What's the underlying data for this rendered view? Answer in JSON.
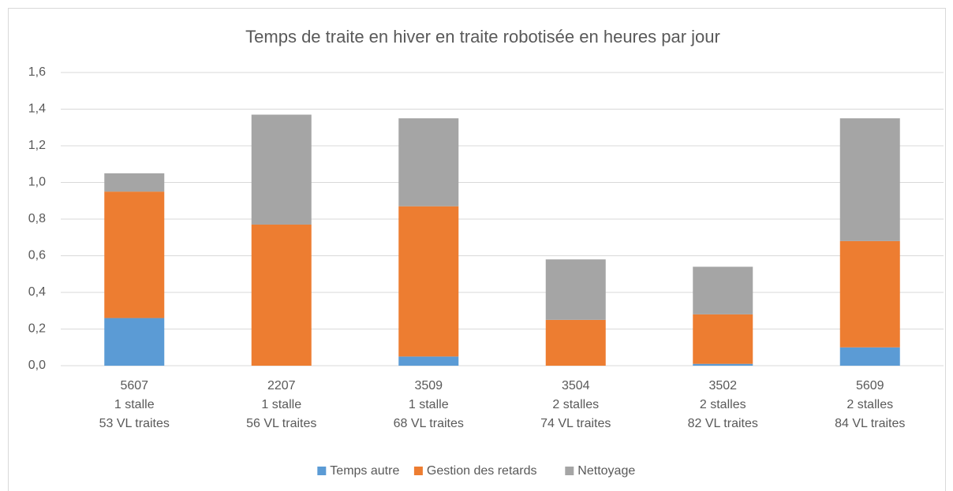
{
  "chart_data": {
    "type": "stacked_bar",
    "title": "Temps de traite en hiver en traite robotisée en heures par jour",
    "categories": [
      [
        "5607",
        "1 stalle",
        "53 VL traites"
      ],
      [
        "2207",
        "1 stalle",
        "56 VL traites"
      ],
      [
        "3509",
        "1 stalle",
        "68 VL traites"
      ],
      [
        "3504",
        "2 stalles",
        "74 VL traites"
      ],
      [
        "3502",
        "2 stalles",
        "82 VL traites"
      ],
      [
        "5609",
        "2 stalles",
        "84 VL traites"
      ]
    ],
    "series": [
      {
        "name": "Temps autre",
        "color": "#5b9bd5",
        "values": [
          0.26,
          0,
          0.05,
          0,
          0.01,
          0.1
        ]
      },
      {
        "name": "Gestion des retards",
        "color": "#ed7d31",
        "values": [
          0.69,
          0.77,
          0.82,
          0.25,
          0.27,
          0.58
        ]
      },
      {
        "name": "Nettoyage",
        "color": "#a5a5a5",
        "values": [
          0.1,
          0.6,
          0.48,
          0.33,
          0.26,
          0.67
        ]
      }
    ],
    "ylim": [
      0,
      1.6
    ],
    "yticks": [
      {
        "value": 0,
        "label": "0,0"
      },
      {
        "value": 0.2,
        "label": "0,2"
      },
      {
        "value": 0.4,
        "label": "0,4"
      },
      {
        "value": 0.6,
        "label": "0,6"
      },
      {
        "value": 0.8,
        "label": "0,8"
      },
      {
        "value": 1.0,
        "label": "1,0"
      },
      {
        "value": 1.2,
        "label": "1,2"
      },
      {
        "value": 1.4,
        "label": "1,4"
      },
      {
        "value": 1.6,
        "label": "1,6"
      }
    ],
    "grid": true,
    "legend": "bottom"
  }
}
